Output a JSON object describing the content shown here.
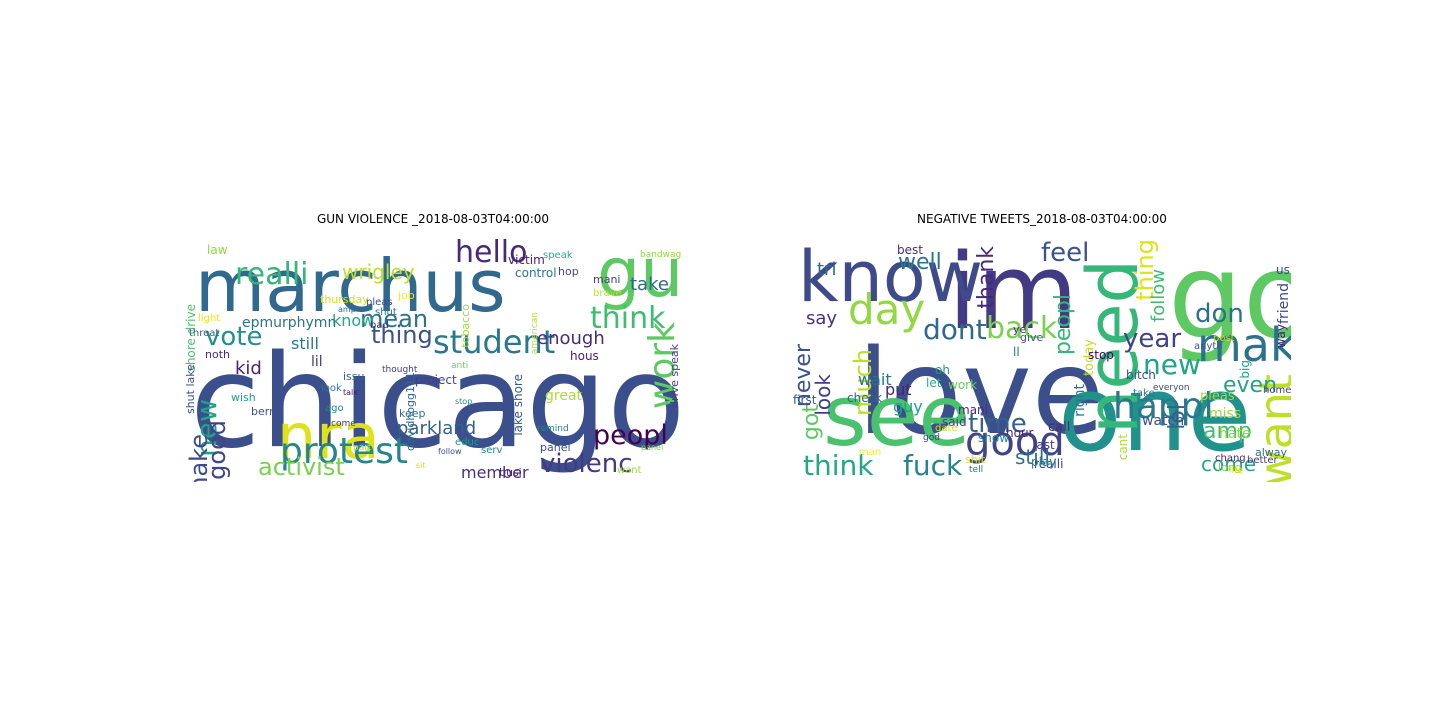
{
  "figure": {
    "panels": [
      {
        "title": "GUN VIOLENCE _2018-08-03T04:00:00",
        "words": [
          {
            "t": "chicago",
            "c": "#3b4f8c"
          },
          {
            "t": "marchus",
            "c": "#31688e"
          },
          {
            "t": "gun",
            "c": "#5ec962"
          },
          {
            "t": "nra",
            "c": "#dde318"
          },
          {
            "t": "hello",
            "c": "#482878"
          },
          {
            "t": "student",
            "c": "#2a788e"
          },
          {
            "t": "protest",
            "c": "#25858e"
          },
          {
            "t": "think",
            "c": "#3fbc73"
          },
          {
            "t": "violenc",
            "c": "#443983"
          },
          {
            "t": "peopl",
            "c": "#440154"
          },
          {
            "t": "realli",
            "c": "#35b779"
          },
          {
            "t": "vote",
            "c": "#21918c"
          },
          {
            "t": "work",
            "c": "#5ec962"
          },
          {
            "t": "activist",
            "c": "#7ad151"
          },
          {
            "t": "mean",
            "c": "#2c728e"
          },
          {
            "t": "thing",
            "c": "#3b528b"
          },
          {
            "t": "enough",
            "c": "#472d7b"
          },
          {
            "t": "new",
            "c": "#20a486"
          },
          {
            "t": "good",
            "c": "#414487"
          },
          {
            "t": "make",
            "c": "#3e4a89"
          },
          {
            "t": "wrigley",
            "c": "#bddf26"
          },
          {
            "t": "parkland",
            "c": "#34618d"
          },
          {
            "t": "member",
            "c": "#46327e"
          },
          {
            "t": "take",
            "c": "#30698e"
          },
          {
            "t": "kid",
            "c": "#482475"
          },
          {
            "t": "still",
            "c": "#29798e"
          },
          {
            "t": "know",
            "c": "#22a884"
          },
          {
            "t": "lil",
            "c": "#453781"
          },
          {
            "t": "epmurphymn",
            "c": "#2d708e"
          },
          {
            "t": "shore drive",
            "c": "#4ac16d"
          },
          {
            "t": "shut lake",
            "c": "#3a538b"
          },
          {
            "t": "lake shore",
            "c": "#38588c"
          },
          {
            "t": "drive speak",
            "c": "#433e85"
          },
          {
            "t": "control",
            "c": "#2a778e"
          },
          {
            "t": "victim",
            "c": "#482071"
          },
          {
            "t": "great",
            "c": "#addc30"
          },
          {
            "t": "project",
            "c": "#404588"
          },
          {
            "t": "keep",
            "c": "#2e6f8e"
          },
          {
            "t": "educ",
            "c": "#1f9e89"
          },
          {
            "t": "serv",
            "c": "#26828e"
          },
          {
            "t": "panel",
            "c": "#3d4e8a"
          },
          {
            "t": "busi",
            "c": "#482677"
          },
          {
            "t": "want",
            "c": "#9bd93c"
          },
          {
            "t": "law",
            "c": "#93d741"
          },
          {
            "t": "job",
            "c": "#fde725"
          },
          {
            "t": "thursday",
            "c": "#d8e219"
          },
          {
            "t": "davidhogg111",
            "c": "#31688e"
          },
          {
            "t": "issu",
            "c": "#35608d"
          },
          {
            "t": "berni",
            "c": "#3c4f8a"
          },
          {
            "t": "wish",
            "c": "#1fa187"
          },
          {
            "t": "noth",
            "c": "#472c7a"
          },
          {
            "t": "look",
            "c": "#2b748e"
          },
          {
            "t": "ago",
            "c": "#24878e"
          },
          {
            "t": "hous",
            "c": "#481f70"
          },
          {
            "t": "mani",
            "c": "#414287"
          },
          {
            "t": "hop",
            "c": "#3f4889"
          },
          {
            "t": "speak",
            "c": "#29af7f"
          },
          {
            "t": "bandwagon",
            "c": "#8fd744"
          },
          {
            "t": "tobacco",
            "c": "#a2da37"
          },
          {
            "t": "brave",
            "c": "#c0df25"
          },
          {
            "t": "american",
            "c": "#b5de2b"
          },
          {
            "t": "pleas",
            "c": "#3d4d8a"
          },
          {
            "t": "shut",
            "c": "#2c738e"
          },
          {
            "t": "bad",
            "c": "#46307e"
          },
          {
            "t": "threat",
            "c": "#32658e"
          },
          {
            "t": "remind",
            "c": "#277f8e"
          },
          {
            "t": "come",
            "c": "#453882"
          },
          {
            "t": "anti",
            "c": "#6ccd5a"
          },
          {
            "t": "thought",
            "c": "#433d84"
          },
          {
            "t": "stop",
            "c": "#1e9b8a"
          },
          {
            "t": "part",
            "c": "#c2df23"
          },
          {
            "t": "talk",
            "c": "#482173"
          },
          {
            "t": "light",
            "c": "#e5e419"
          },
          {
            "t": "amp",
            "c": "#2f6c8e"
          },
          {
            "t": "sit",
            "c": "#cde11d"
          },
          {
            "t": "panel",
            "c": "#84d44b"
          },
          {
            "t": "follow",
            "c": "#3a548c"
          }
        ]
      },
      {
        "title": "NEGATIVE TWEETS_2018-08-03T04:00:00",
        "words": [
          {
            "t": "love",
            "c": "#3b4f8c"
          },
          {
            "t": "go",
            "c": "#5ec962"
          },
          {
            "t": "im",
            "c": "#443983"
          },
          {
            "t": "one",
            "c": "#21918c"
          },
          {
            "t": "know",
            "c": "#3e4a89"
          },
          {
            "t": "see",
            "c": "#4ac16d"
          },
          {
            "t": "need",
            "c": "#35b779"
          },
          {
            "t": "make",
            "c": "#2c728e"
          },
          {
            "t": "happi",
            "c": "#2a788e"
          },
          {
            "t": "good",
            "c": "#414487"
          },
          {
            "t": "day",
            "c": "#93d741"
          },
          {
            "t": "want",
            "c": "#bddf26"
          },
          {
            "t": "back",
            "c": "#7ad151"
          },
          {
            "t": "dont",
            "c": "#30698e"
          },
          {
            "t": "think",
            "c": "#22a884"
          },
          {
            "t": "fuck",
            "c": "#25858e"
          },
          {
            "t": "time",
            "c": "#34618d"
          },
          {
            "t": "new",
            "c": "#20a486"
          },
          {
            "t": "year",
            "c": "#414287"
          },
          {
            "t": "feel",
            "c": "#3b528b"
          },
          {
            "t": "don",
            "c": "#2d708e"
          },
          {
            "t": "thing",
            "c": "#dde318"
          },
          {
            "t": "thank",
            "c": "#482878"
          },
          {
            "t": "peopl",
            "c": "#35b779"
          },
          {
            "t": "well",
            "c": "#2a788e"
          },
          {
            "t": "much",
            "c": "#bddf26"
          },
          {
            "t": "amp",
            "c": "#3fbc73"
          },
          {
            "t": "even",
            "c": "#20a486"
          },
          {
            "t": "come",
            "c": "#22a884"
          },
          {
            "t": "still",
            "c": "#2c728e"
          },
          {
            "t": "got",
            "c": "#5ec962"
          },
          {
            "t": "never",
            "c": "#3b528b"
          },
          {
            "t": "look",
            "c": "#433e85"
          },
          {
            "t": "say",
            "c": "#46327e"
          },
          {
            "t": "tri",
            "c": "#31688e"
          },
          {
            "t": "follow",
            "c": "#3fbc73"
          },
          {
            "t": "lol",
            "c": "#35608d"
          },
          {
            "t": "guy",
            "c": "#1fa187"
          },
          {
            "t": "put",
            "c": "#482475"
          },
          {
            "t": "wait",
            "c": "#2b748e"
          },
          {
            "t": "friend",
            "c": "#3e4a89"
          },
          {
            "t": "miss",
            "c": "#9bd93c"
          },
          {
            "t": "hate",
            "c": "#8fd744"
          },
          {
            "t": "watch",
            "c": "#3d4e8a"
          },
          {
            "t": "pleas",
            "c": "#a2da37"
          },
          {
            "t": "right",
            "c": "#2a778e"
          },
          {
            "t": "today",
            "c": "#c0df25"
          },
          {
            "t": "stop",
            "c": "#440154"
          },
          {
            "t": "call",
            "c": "#472d7b"
          },
          {
            "t": "last",
            "c": "#453781"
          },
          {
            "t": "hour",
            "c": "#482677"
          },
          {
            "t": "show",
            "c": "#24878e"
          },
          {
            "t": "shit",
            "c": "#d8e219"
          },
          {
            "t": "said",
            "c": "#404588"
          },
          {
            "t": "first",
            "c": "#3a548c"
          },
          {
            "t": "best",
            "c": "#46307e"
          },
          {
            "t": "let",
            "c": "#29af7f"
          },
          {
            "t": "oh",
            "c": "#1e9b8a"
          },
          {
            "t": "work",
            "c": "#6ccd5a"
          },
          {
            "t": "give",
            "c": "#38588c"
          },
          {
            "t": "check",
            "c": "#32658e"
          },
          {
            "t": "bitch",
            "c": "#3c4f8a"
          },
          {
            "t": "mani",
            "c": "#472c7a"
          },
          {
            "t": "realli",
            "c": "#433d84"
          },
          {
            "t": "play",
            "c": "#26828e"
          },
          {
            "t": "take",
            "c": "#2e6f8e"
          },
          {
            "t": "cant",
            "c": "#addc30"
          },
          {
            "t": "alway",
            "c": "#2f6c8e"
          },
          {
            "t": "chang",
            "c": "#481f70"
          },
          {
            "t": "anyth",
            "c": "#3a538b"
          },
          {
            "t": "long",
            "c": "#84d44b"
          },
          {
            "t": "better",
            "c": "#453882"
          },
          {
            "t": "way",
            "c": "#482071"
          },
          {
            "t": "big",
            "c": "#1f9e89"
          },
          {
            "t": "man",
            "c": "#fde725"
          },
          {
            "t": "date",
            "c": "#cde11d"
          },
          {
            "t": "god",
            "c": "#404588"
          },
          {
            "t": "us",
            "c": "#3d4d8a"
          },
          {
            "t": "ll",
            "c": "#29798e"
          },
          {
            "t": "ye",
            "c": "#482173"
          },
          {
            "t": "home",
            "c": "#433e85"
          },
          {
            "t": "post",
            "c": "#c2df23"
          },
          {
            "t": "tell",
            "c": "#2c738e"
          },
          {
            "t": "everyon",
            "c": "#3e4a89"
          },
          {
            "t": "life",
            "c": "#e5e419"
          }
        ]
      }
    ]
  }
}
